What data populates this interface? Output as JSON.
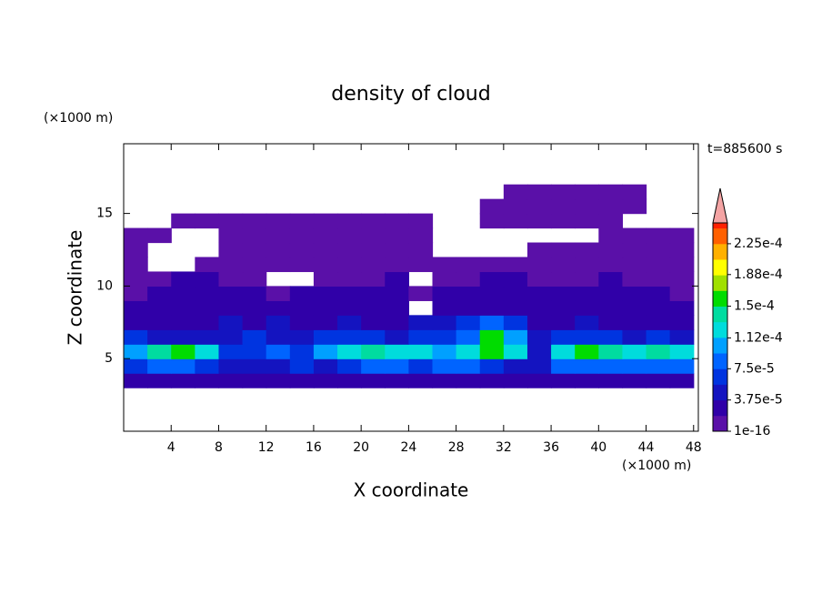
{
  "chart_data": {
    "type": "contour",
    "title": "density of cloud",
    "xlabel": "X coordinate",
    "ylabel": "Z coordinate",
    "xlabel_unit": "(×1000 m)",
    "ylabel_unit": "(×1000 m)",
    "time_label": "t=885600 s",
    "xlim": [
      0,
      48.4
    ],
    "ylim": [
      0,
      19.8
    ],
    "xticks": [
      4,
      8,
      12,
      16,
      20,
      24,
      28,
      32,
      36,
      40,
      44,
      48
    ],
    "yticks": [
      5,
      10,
      15
    ],
    "x": [
      0,
      2,
      4,
      6,
      8,
      10,
      12,
      14,
      16,
      18,
      20,
      22,
      24,
      26,
      28,
      30,
      32,
      34,
      36,
      38,
      40,
      42,
      44,
      46,
      48
    ],
    "z": [
      3,
      4,
      5,
      6,
      7,
      8,
      9,
      10,
      11,
      12,
      13,
      14,
      15,
      16,
      17
    ],
    "values": [
      [
        2e-05,
        2e-05,
        2e-05,
        2e-05,
        2e-05,
        2e-05,
        2e-05,
        2e-05,
        2e-05,
        2e-05,
        2e-05,
        2e-05,
        2e-05,
        2e-05,
        2e-05,
        2e-05,
        2e-05,
        2e-05,
        2e-05,
        2e-05,
        2e-05,
        2e-05,
        2e-05,
        2e-05
      ],
      [
        6e-05,
        8e-05,
        8e-05,
        6e-05,
        5e-05,
        4e-05,
        5e-05,
        6e-05,
        5e-05,
        7e-05,
        8e-05,
        8e-05,
        7e-05,
        8e-05,
        8e-05,
        6e-05,
        5e-05,
        4e-05,
        8e-05,
        9e-05,
        9e-05,
        8e-05,
        9e-05,
        8e-05
      ],
      [
        0.00011,
        0.00014,
        0.00015,
        0.00012,
        7e-05,
        6e-05,
        8e-05,
        7e-05,
        0.0001,
        0.00013,
        0.00014,
        0.00012,
        0.00013,
        0.00011,
        0.00013,
        0.00015,
        0.00012,
        5e-05,
        0.00013,
        0.00015,
        0.00014,
        0.00013,
        0.00014,
        0.00013
      ],
      [
        6e-05,
        5e-05,
        4e-05,
        4e-05,
        5e-05,
        6e-05,
        5e-05,
        4e-05,
        6e-05,
        7e-05,
        6e-05,
        5e-05,
        6e-05,
        7e-05,
        9e-05,
        0.00016,
        0.0001,
        5e-05,
        6e-05,
        7e-05,
        6e-05,
        5e-05,
        6e-05,
        5e-05
      ],
      [
        3e-05,
        3e-05,
        2e-05,
        3e-05,
        4e-05,
        3e-05,
        4e-05,
        3e-05,
        3e-05,
        4e-05,
        3e-05,
        3e-05,
        4e-05,
        5e-05,
        6e-05,
        8e-05,
        6e-05,
        3e-05,
        3e-05,
        4e-05,
        3e-05,
        3e-05,
        3e-05,
        3e-05
      ],
      [
        2e-05,
        2e-05,
        3e-05,
        2e-05,
        2e-05,
        3e-05,
        2e-05,
        2e-05,
        3e-05,
        2e-05,
        2e-05,
        3e-05,
        null,
        3e-05,
        2e-05,
        3e-05,
        2e-05,
        2e-05,
        3e-05,
        2e-05,
        2e-05,
        2e-05,
        3e-05,
        2e-05
      ],
      [
        1e-05,
        2e-05,
        2e-05,
        2e-05,
        2e-05,
        2e-05,
        1e-05,
        2e-05,
        2e-05,
        2e-05,
        2e-05,
        2e-05,
        1e-05,
        2e-05,
        2e-05,
        2e-05,
        2e-05,
        2e-05,
        2e-05,
        2e-05,
        2e-05,
        2e-05,
        2e-05,
        1e-05
      ],
      [
        1e-05,
        1e-05,
        2e-05,
        2e-05,
        1e-05,
        1e-05,
        null,
        null,
        1e-05,
        1e-05,
        1e-05,
        2e-05,
        null,
        1e-05,
        1e-05,
        2e-05,
        2e-05,
        1e-05,
        1e-05,
        1e-05,
        2e-05,
        1e-05,
        1e-05,
        1e-05
      ],
      [
        1e-05,
        null,
        null,
        1e-05,
        1e-05,
        1e-05,
        1e-05,
        1e-05,
        1e-05,
        1e-05,
        1e-05,
        1e-05,
        1e-05,
        1e-05,
        1e-05,
        1e-05,
        1e-05,
        1e-05,
        1e-05,
        1e-05,
        1e-05,
        1e-05,
        1e-05,
        1e-05
      ],
      [
        1e-05,
        null,
        null,
        null,
        1e-05,
        1e-05,
        1e-05,
        1e-05,
        1e-05,
        1e-05,
        1e-05,
        1e-05,
        1e-05,
        null,
        null,
        null,
        null,
        1e-05,
        1e-05,
        1e-05,
        1e-05,
        1e-05,
        1e-05,
        1e-05
      ],
      [
        1e-05,
        1e-05,
        null,
        null,
        1e-05,
        1e-05,
        1e-05,
        1e-05,
        1e-05,
        1e-05,
        1e-05,
        1e-05,
        1e-05,
        null,
        null,
        null,
        null,
        null,
        null,
        null,
        1e-05,
        1e-05,
        1e-05,
        1e-05
      ],
      [
        null,
        null,
        1e-05,
        1e-05,
        1e-05,
        1e-05,
        1e-05,
        1e-05,
        1e-05,
        1e-05,
        1e-05,
        1e-05,
        1e-05,
        null,
        null,
        1e-05,
        1e-05,
        1e-05,
        1e-05,
        1e-05,
        1e-05,
        null,
        null,
        null
      ],
      [
        null,
        null,
        null,
        null,
        null,
        null,
        null,
        null,
        null,
        null,
        null,
        null,
        null,
        null,
        null,
        1e-05,
        1e-05,
        1e-05,
        1e-05,
        1e-05,
        1e-05,
        1e-05,
        null,
        null
      ],
      [
        null,
        null,
        null,
        null,
        null,
        null,
        null,
        null,
        null,
        null,
        null,
        null,
        null,
        null,
        null,
        null,
        1e-05,
        1e-05,
        1e-05,
        1e-05,
        1e-05,
        1e-05,
        null,
        null
      ]
    ],
    "levels": [
      1e-16,
      1.875e-05,
      3.75e-05,
      5.625e-05,
      7.5e-05,
      9.375e-05,
      0.0001125,
      0.00013125,
      0.00015,
      0.00016875,
      0.0001875,
      0.00020625,
      0.000225,
      0.00024375
    ],
    "colors": [
      "#5a10a8",
      "#3000a8",
      "#1414c0",
      "#0034e0",
      "#0064ff",
      "#00a0ff",
      "#00dcdc",
      "#00dca0",
      "#00dc00",
      "#a0e000",
      "#ffff00",
      "#ffb000",
      "#ff6000",
      "#ff2000"
    ],
    "extend_color": "#f4a4a4",
    "clim": [
      0,
      0.00025
    ],
    "cticks": [
      1e-16,
      {
        "value": 3.75e-05,
        "label": "3.75e-5"
      },
      {
        "value": 7.5e-05,
        "label": "7.5e-5"
      },
      {
        "value": 0.000112,
        "label": "1.12e-4"
      },
      {
        "value": 0.00015,
        "label": "1.5e-4"
      },
      {
        "value": 0.000188,
        "label": "1.88e-4"
      },
      {
        "value": 0.000225,
        "label": "2.25e-4"
      }
    ]
  }
}
